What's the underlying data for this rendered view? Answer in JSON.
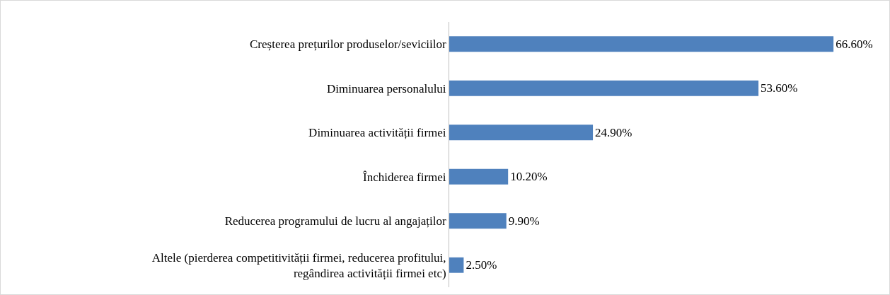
{
  "chart_data": {
    "type": "bar",
    "orientation": "horizontal",
    "categories": [
      "Creșterea prețurilor produselor/seviciilor",
      "Diminuarea personalului",
      "Diminuarea activității firmei",
      "Închiderea firmei",
      "Reducerea programului de lucru al angajaților",
      "Altele (pierderea competitivității firmei, reducerea profitului,\nregândirea activității firmei etc)"
    ],
    "values": [
      66.6,
      53.6,
      24.9,
      10.2,
      9.9,
      2.5
    ],
    "value_labels": [
      "66.60%",
      "53.60%",
      "24.90%",
      "10.20%",
      "9.90%",
      "2.50%"
    ],
    "color": "#4f81bd"
  }
}
